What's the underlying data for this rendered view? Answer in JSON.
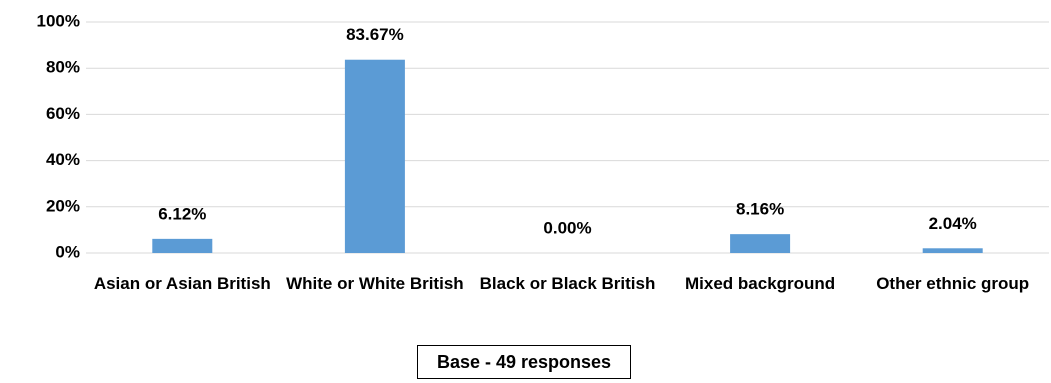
{
  "chart_data": {
    "type": "bar",
    "categories": [
      "Asian or Asian British",
      "White or White British",
      "Black or Black British",
      "Mixed background",
      "Other ethnic group"
    ],
    "values": [
      6.12,
      83.67,
      0.0,
      8.16,
      2.04
    ],
    "value_labels": [
      "6.12%",
      "83.67%",
      "0.00%",
      "8.16%",
      "2.04%"
    ],
    "color": "#5b9bd5",
    "ylim": [
      0,
      100
    ],
    "yticks": [
      {
        "value": 0,
        "label": "0%"
      },
      {
        "value": 20,
        "label": "20%"
      },
      {
        "value": 40,
        "label": "40%"
      },
      {
        "value": 60,
        "label": "60%"
      },
      {
        "value": 80,
        "label": "80%"
      },
      {
        "value": 100,
        "label": "100%"
      }
    ],
    "grid": true,
    "annotation": "Base - 49 responses"
  }
}
